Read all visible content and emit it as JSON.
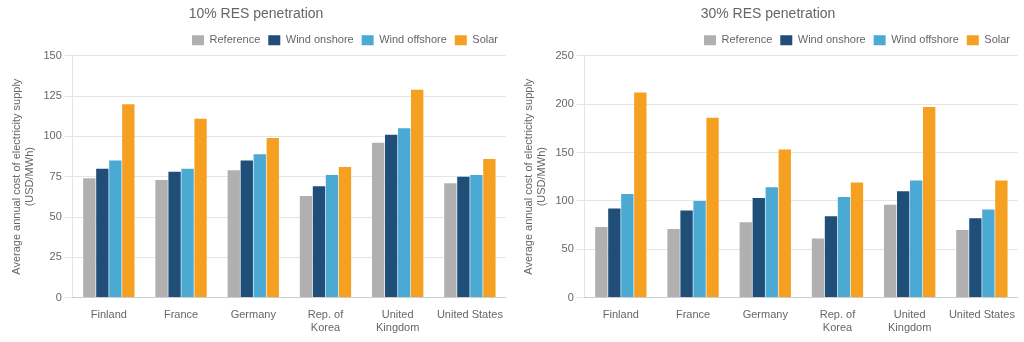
{
  "chart_data": [
    {
      "type": "bar",
      "title": "10% RES penetration",
      "ylabel": "Average annual cost of electricity supply\n(USD/MWh)",
      "categories": [
        "Finland",
        "France",
        "Germany",
        "Rep. of\nKorea",
        "United\nKingdom",
        "United States"
      ],
      "series": [
        {
          "name": "Reference",
          "color": "#b0b0b0",
          "values": [
            74,
            73,
            79,
            63,
            96,
            71
          ]
        },
        {
          "name": "Wind onshore",
          "color": "#1f4e79",
          "values": [
            80,
            78,
            85,
            69,
            101,
            75
          ]
        },
        {
          "name": "Wind offshore",
          "color": "#4baad4",
          "values": [
            85,
            80,
            89,
            76,
            105,
            76
          ]
        },
        {
          "name": "Solar",
          "color": "#f5a020",
          "values": [
            120,
            111,
            99,
            81,
            129,
            86
          ]
        }
      ],
      "ylim": [
        0,
        150
      ],
      "yticks": [
        0,
        25,
        50,
        75,
        100,
        125,
        150
      ],
      "grid": true,
      "legend": "upper right"
    },
    {
      "type": "bar",
      "title": "30% RES penetration",
      "ylabel": "Average annual cost of electricity supply\n(USD/MWh)",
      "categories": [
        "Finland",
        "France",
        "Germany",
        "Rep. of\nKorea",
        "United\nKingdom",
        "United States"
      ],
      "series": [
        {
          "name": "Reference",
          "color": "#b0b0b0",
          "values": [
            73,
            71,
            78,
            61,
            96,
            70
          ]
        },
        {
          "name": "Wind onshore",
          "color": "#1f4e79",
          "values": [
            92,
            90,
            103,
            84,
            110,
            82
          ]
        },
        {
          "name": "Wind offshore",
          "color": "#4baad4",
          "values": [
            107,
            100,
            114,
            104,
            121,
            91
          ]
        },
        {
          "name": "Solar",
          "color": "#f5a020",
          "values": [
            212,
            186,
            153,
            119,
            197,
            121
          ]
        }
      ],
      "ylim": [
        0,
        250
      ],
      "yticks": [
        0,
        50,
        100,
        150,
        200,
        250
      ],
      "grid": true,
      "legend": "upper right"
    }
  ]
}
